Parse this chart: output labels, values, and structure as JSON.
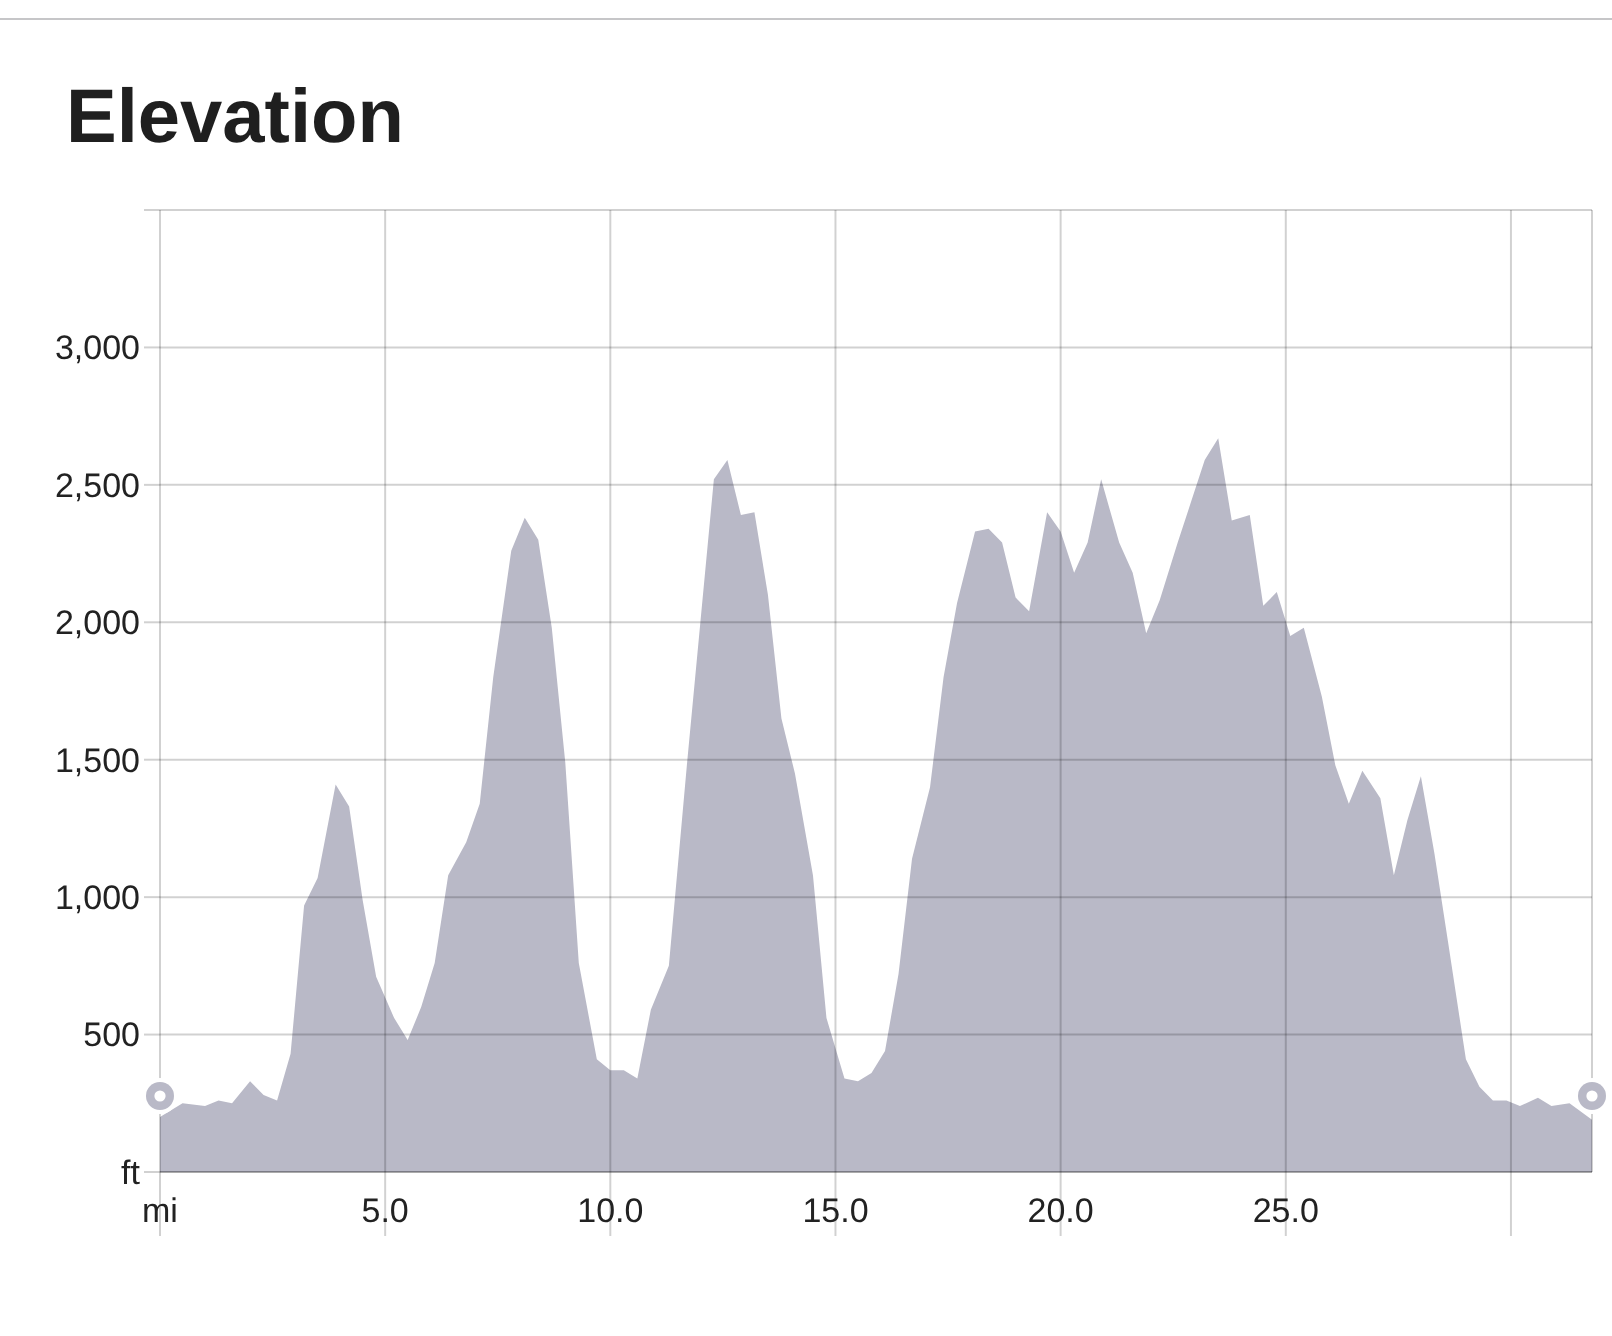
{
  "chart_data": {
    "type": "area",
    "title": "Elevation",
    "x": [
      0,
      0.5,
      1.0,
      1.3,
      1.6,
      2.0,
      2.3,
      2.6,
      2.9,
      3.2,
      3.5,
      3.9,
      4.2,
      4.5,
      4.8,
      5.2,
      5.5,
      5.8,
      6.1,
      6.4,
      6.8,
      7.1,
      7.4,
      7.8,
      8.1,
      8.4,
      8.7,
      9.0,
      9.3,
      9.7,
      10.0,
      10.3,
      10.6,
      10.9,
      11.3,
      11.7,
      12.0,
      12.3,
      12.6,
      12.9,
      13.2,
      13.5,
      13.8,
      14.1,
      14.5,
      14.8,
      15.2,
      15.5,
      15.8,
      16.1,
      16.4,
      16.7,
      17.1,
      17.4,
      17.7,
      18.1,
      18.4,
      18.7,
      19.0,
      19.3,
      19.7,
      20.0,
      20.3,
      20.6,
      20.9,
      21.3,
      21.6,
      21.9,
      22.2,
      22.6,
      22.9,
      23.2,
      23.5,
      23.8,
      24.2,
      24.5,
      24.8,
      25.1,
      25.4,
      25.8,
      26.1,
      26.4,
      26.7,
      27.1,
      27.4,
      27.7,
      28.0,
      28.3,
      28.6,
      29.0,
      29.3,
      29.6,
      29.9,
      30.2,
      30.6,
      30.9,
      31.3,
      31.8
    ],
    "values": [
      200,
      250,
      240,
      260,
      250,
      330,
      280,
      260,
      430,
      970,
      1070,
      1410,
      1330,
      990,
      710,
      560,
      480,
      600,
      760,
      1080,
      1200,
      1340,
      1800,
      2260,
      2380,
      2300,
      1980,
      1490,
      760,
      410,
      370,
      370,
      340,
      590,
      750,
      1480,
      2000,
      2520,
      2590,
      2390,
      2400,
      2100,
      1650,
      1450,
      1080,
      560,
      340,
      330,
      360,
      440,
      720,
      1140,
      1400,
      1800,
      2070,
      2330,
      2340,
      2290,
      2090,
      2040,
      2400,
      2330,
      2180,
      2290,
      2520,
      2290,
      2180,
      1960,
      2080,
      2290,
      2440,
      2590,
      2670,
      2370,
      2390,
      2060,
      2110,
      1950,
      1980,
      1730,
      1480,
      1340,
      1460,
      1360,
      1080,
      1280,
      1440,
      1160,
      840,
      410,
      310,
      260,
      260,
      240,
      270,
      240,
      250,
      190
    ],
    "color": "#b9b9c7",
    "xlim": [
      0,
      31.8
    ],
    "xticks": [
      {
        "value": 0,
        "label": "mi"
      },
      {
        "value": 5,
        "label": "5.0"
      },
      {
        "value": 10,
        "label": "10.0"
      },
      {
        "value": 15,
        "label": "15.0"
      },
      {
        "value": 20,
        "label": "20.0"
      },
      {
        "value": 25,
        "label": "25.0"
      },
      {
        "value": 30,
        "label": null
      }
    ],
    "ylim": [
      0,
      3500
    ],
    "yticks": [
      {
        "value": 0,
        "label": "ft"
      },
      500,
      {
        "value": 1000,
        "label": "1,000"
      },
      {
        "value": 1500,
        "label": "1,500"
      },
      {
        "value": 2000,
        "label": "2,000"
      },
      {
        "value": 2500,
        "label": "2,500"
      },
      {
        "value": 3000,
        "label": "3,000"
      },
      {
        "value": 3500,
        "label": null
      }
    ],
    "grid": true
  }
}
